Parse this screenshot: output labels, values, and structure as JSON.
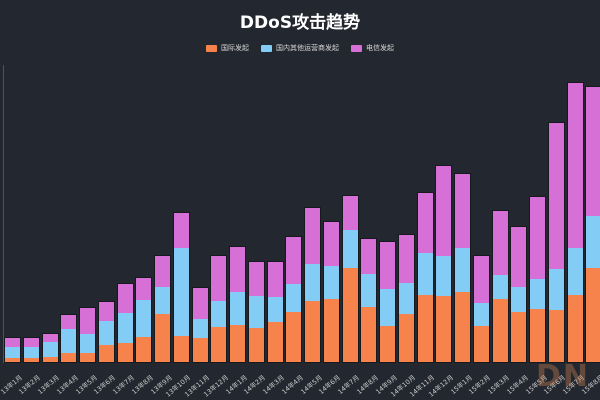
{
  "chart_data": {
    "type": "bar",
    "stacked": true,
    "title": "DDoS攻击趋势",
    "xlabel": "",
    "ylabel": "",
    "legend_position": "top",
    "grid": false,
    "categories": [
      "13年1月",
      "13年2月",
      "13年3月",
      "13年4月",
      "13年5月",
      "13年6月",
      "13年7月",
      "13年8月",
      "13年9月",
      "13年10月",
      "13年11月",
      "13年12月",
      "14年1月",
      "14年2月",
      "14年3月",
      "14年4月",
      "14年5月",
      "14年6月",
      "14年7月",
      "14年8月",
      "14年9月",
      "14年10月",
      "14年11月",
      "14年12月",
      "15年1月",
      "15年2月",
      "15年3月",
      "15年4月",
      "15年5月",
      "15年6月",
      "15年7月",
      "15年8月"
    ],
    "series": [
      {
        "name": "国际发起",
        "color": "#f7834c",
        "values": [
          4,
          4,
          5,
          9,
          9,
          17,
          19,
          25,
          48,
          26,
          24,
          35,
          37,
          34,
          40,
          50,
          61,
          63,
          94,
          55,
          36,
          48,
          67,
          66,
          70,
          36,
          63,
          50,
          53,
          52,
          67,
          94
        ]
      },
      {
        "name": "国内其他运营商发起",
        "color": "#82ccf5",
        "values": [
          11,
          11,
          15,
          24,
          19,
          24,
          30,
          37,
          27,
          88,
          19,
          26,
          33,
          32,
          25,
          28,
          37,
          33,
          38,
          33,
          37,
          31,
          42,
          40,
          44,
          23,
          24,
          25,
          30,
          41,
          47,
          52
        ]
      },
      {
        "name": "电信发起",
        "color": "#d66fd6",
        "values": [
          9,
          9,
          8,
          14,
          26,
          19,
          29,
          22,
          31,
          35,
          31,
          45,
          45,
          34,
          35,
          47,
          56,
          44,
          34,
          35,
          47,
          48,
          60,
          90,
          74,
          47,
          64,
          60,
          82,
          146,
          165,
          129
        ]
      }
    ]
  },
  "watermark": "DN"
}
